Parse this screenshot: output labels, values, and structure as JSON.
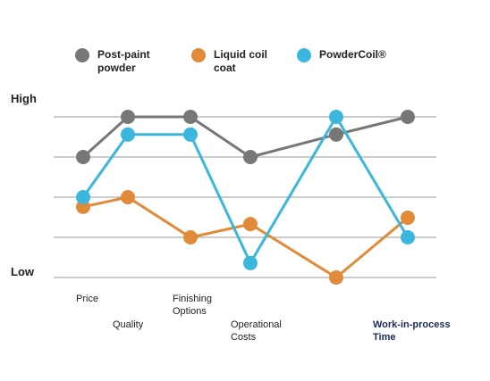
{
  "chart_data": {
    "type": "line",
    "categories": [
      "Price",
      "Quality",
      "Finishing Options",
      "Operational Costs",
      null,
      "Work-in-process Time"
    ],
    "series": [
      {
        "name": "Post-paint powder",
        "color": "#777777",
        "values": [
          3,
          4,
          4,
          3,
          3.56,
          4
        ]
      },
      {
        "name": "Liquid coil coat",
        "color": "#e08a3a",
        "values": [
          1.76,
          2,
          1,
          1.33,
          0,
          1.49
        ]
      },
      {
        "name": "PowderCoil®",
        "color": "#3bb6dc",
        "values": [
          2,
          3.56,
          3.56,
          0.36,
          4,
          1
        ]
      }
    ],
    "ylim": [
      0,
      4
    ],
    "yticks": [
      {
        "value": 0,
        "label": "Low"
      },
      {
        "value": 4,
        "label": "High"
      }
    ],
    "grid": true
  }
}
